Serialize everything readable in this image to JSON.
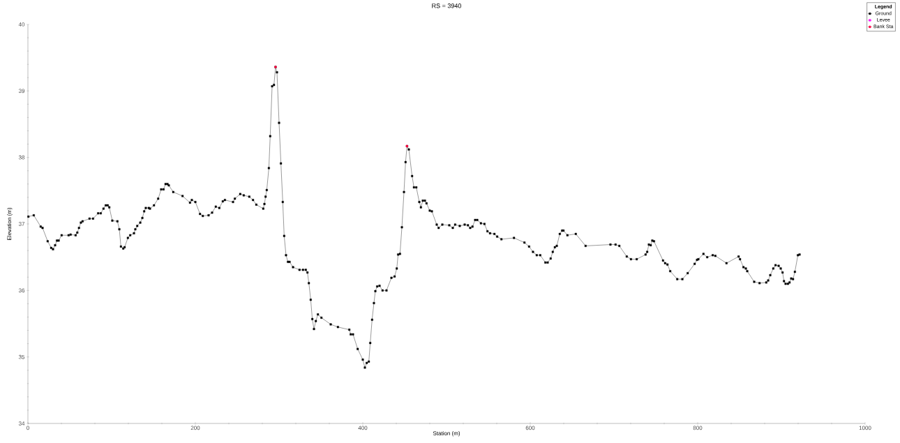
{
  "chart_data": {
    "type": "line",
    "title": "RS = 3940",
    "xlabel": "Station (m)",
    "ylabel": "Elevation (m)",
    "legend_title": "Legend",
    "legend": "top right",
    "grid": false,
    "xlim": [
      0,
      1000
    ],
    "ylim": [
      34,
      40
    ],
    "xticks": [
      0,
      {
        "value": 40,
        "label": null
      },
      {
        "value": 80,
        "label": null
      },
      {
        "value": 120,
        "label": null
      },
      {
        "value": 160,
        "label": null
      },
      200,
      {
        "value": 240,
        "label": null
      },
      {
        "value": 280,
        "label": null
      },
      {
        "value": 320,
        "label": null
      },
      {
        "value": 360,
        "label": null
      },
      400,
      {
        "value": 440,
        "label": null
      },
      {
        "value": 480,
        "label": null
      },
      {
        "value": 520,
        "label": null
      },
      {
        "value": 560,
        "label": null
      },
      600,
      {
        "value": 640,
        "label": null
      },
      {
        "value": 680,
        "label": null
      },
      {
        "value": 720,
        "label": null
      },
      {
        "value": 760,
        "label": null
      },
      800,
      {
        "value": 840,
        "label": null
      },
      {
        "value": 880,
        "label": null
      },
      {
        "value": 920,
        "label": null
      },
      {
        "value": 960,
        "label": null
      },
      1000
    ],
    "yticks": [
      34,
      {
        "value": 34.2,
        "label": null
      },
      {
        "value": 34.4,
        "label": null
      },
      {
        "value": 34.6,
        "label": null
      },
      {
        "value": 34.8,
        "label": null
      },
      35,
      {
        "value": 35.2,
        "label": null
      },
      {
        "value": 35.4,
        "label": null
      },
      {
        "value": 35.6,
        "label": null
      },
      {
        "value": 35.8,
        "label": null
      },
      36,
      {
        "value": 36.2,
        "label": null
      },
      {
        "value": 36.4,
        "label": null
      },
      {
        "value": 36.6,
        "label": null
      },
      {
        "value": 36.8,
        "label": null
      },
      37,
      {
        "value": 37.2,
        "label": null
      },
      {
        "value": 37.4,
        "label": null
      },
      {
        "value": 37.6,
        "label": null
      },
      {
        "value": 37.8,
        "label": null
      },
      38,
      {
        "value": 38.2,
        "label": null
      },
      {
        "value": 38.4,
        "label": null
      },
      {
        "value": 38.6,
        "label": null
      },
      {
        "value": 38.8,
        "label": null
      },
      39,
      {
        "value": 39.2,
        "label": null
      },
      {
        "value": 39.4,
        "label": null
      },
      {
        "value": 39.6,
        "label": null
      },
      {
        "value": 39.8,
        "label": null
      },
      40
    ],
    "series": [
      {
        "name": "Ground",
        "color": "#000000",
        "marker": "square",
        "line_style": "solid",
        "x": [
          0.6,
          7,
          15.3,
          17.5,
          23.6,
          27.8,
          30,
          32.5,
          34.7,
          36.7,
          40.3,
          48.6,
          51,
          57,
          59,
          61,
          63.3,
          65.3,
          73.6,
          77.8,
          83.9,
          87,
          90.3,
          93,
          95.3,
          97.2,
          100.8,
          106.9,
          109.2,
          111.1,
          113.9,
          115.5,
          119.4,
          122.2,
          126.7,
          128.3,
          130.6,
          134.2,
          136.7,
          138.9,
          140.8,
          144.4,
          145.8,
          150.6,
          155.6,
          159.2,
          162,
          164.4,
          166.7,
          168.3,
          173.6,
          184.7,
          193.6,
          195.8,
          200,
          205.6,
          208.9,
          215.8,
          220,
          224.4,
          228.6,
          232.8,
          235.3,
          245,
          247.2,
          253.6,
          257.8,
          264.4,
          268.9,
          272.8,
          281.1,
          282.5,
          283.9,
          285.3,
          287.8,
          289.4,
          291.7,
          293.9,
          295.8,
          297.5,
          300,
          302.2,
          304.4,
          306.1,
          308.3,
          310.6,
          312.5,
          316.7,
          324.4,
          328.6,
          331.9,
          333.9,
          335.6,
          337.8,
          339.7,
          341.7,
          343.9,
          346.4,
          350.6,
          361.7,
          370.3,
          383.9,
          385.6,
          388.3,
          393.9,
          400,
          402.5,
          404.7,
          407.2,
          408.9,
          411.1,
          413.3,
          415,
          417.2,
          420,
          423.6,
          428.3,
          434.2,
          438,
          440.6,
          442.2,
          444.4,
          446.7,
          449.2,
          451.1,
          452.8,
          455,
          458.9,
          461.1,
          463.9,
          467.5,
          469.4,
          471.7,
          474.2,
          476.1,
          480,
          482.5,
          488.3,
          490.6,
          495,
          503.3,
          507.5,
          510.3,
          515.8,
          521.7,
          525.6,
          528.3,
          531,
          534.2,
          536.7,
          541.1,
          545.3,
          548.9,
          552,
          557.2,
          560.5,
          565.6,
          580.6,
          593.1,
          598.6,
          603.3,
          607.8,
          611.9,
          618.1,
          620.8,
          624.4,
          626.9,
          629.4,
          631.7,
          635.3,
          638.1,
          639.7,
          644.4,
          654.4,
          666.1,
          695.8,
          701.9,
          706.4,
          715.3,
          720.3,
          727.2,
          737.8,
          739.7,
          741.7,
          743.9,
          745.8,
          747.8,
          758.6,
          761.1,
          763.9,
          767.2,
          775.6,
          781.7,
          788.1,
          796.4,
          799.2,
          800.8,
          806.9,
          811.4,
          818,
          821.1,
          834.4,
          848.9,
          850.6,
          854.7,
          857.5,
          859.2,
          867.5,
          873.9,
          881.9,
          884.2,
          886.7,
          890.3,
          893,
          896.7,
          899.2,
          901.4,
          903.1,
          905,
          907.8,
          909.7,
          911.7,
          913.9,
          916.1,
          919.7,
          921.7
        ],
        "values": [
          37.11,
          37.13,
          36.96,
          36.94,
          36.74,
          36.64,
          36.62,
          36.68,
          36.75,
          36.75,
          36.83,
          36.83,
          36.84,
          36.83,
          36.87,
          36.94,
          37.02,
          37.04,
          37.08,
          37.08,
          37.16,
          37.16,
          37.23,
          37.28,
          37.28,
          37.25,
          37.05,
          37.04,
          36.92,
          36.66,
          36.63,
          36.65,
          36.79,
          36.83,
          36.86,
          36.92,
          36.97,
          37.02,
          37.09,
          37.19,
          37.24,
          37.24,
          37.23,
          37.28,
          37.38,
          37.52,
          37.52,
          37.6,
          37.6,
          37.58,
          37.48,
          37.42,
          37.32,
          37.36,
          37.33,
          37.15,
          37.12,
          37.13,
          37.17,
          37.26,
          37.24,
          37.34,
          37.36,
          37.33,
          37.38,
          37.45,
          37.43,
          37.41,
          37.36,
          37.29,
          37.23,
          37.3,
          37.41,
          37.51,
          37.84,
          38.32,
          39.07,
          39.09,
          39.36,
          39.28,
          38.52,
          37.91,
          37.33,
          36.82,
          36.53,
          36.43,
          36.43,
          36.35,
          36.31,
          36.31,
          36.31,
          36.27,
          36.11,
          35.86,
          35.57,
          35.42,
          35.54,
          35.64,
          35.59,
          35.49,
          35.45,
          35.41,
          35.34,
          35.34,
          35.12,
          34.96,
          34.84,
          34.91,
          34.93,
          35.21,
          35.56,
          35.81,
          35.99,
          36.06,
          36.07,
          36,
          36,
          36.19,
          36.21,
          36.33,
          36.54,
          36.55,
          36.95,
          37.48,
          37.93,
          38.17,
          38.12,
          37.72,
          37.55,
          37.55,
          37.33,
          37.25,
          37.35,
          37.35,
          37.31,
          37.2,
          37.19,
          36.99,
          36.94,
          36.99,
          36.98,
          36.94,
          36.99,
          36.97,
          36.99,
          36.98,
          36.94,
          36.96,
          37.06,
          37.06,
          37.01,
          37,
          36.89,
          36.86,
          36.85,
          36.81,
          36.77,
          36.79,
          36.72,
          36.66,
          36.58,
          36.53,
          36.53,
          36.42,
          36.42,
          36.48,
          36.58,
          36.65,
          36.67,
          36.85,
          36.9,
          36.9,
          36.83,
          36.85,
          36.67,
          36.69,
          36.69,
          36.67,
          36.51,
          36.47,
          36.47,
          36.54,
          36.58,
          36.69,
          36.68,
          36.75,
          36.74,
          36.45,
          36.41,
          36.39,
          36.29,
          36.17,
          36.17,
          36.26,
          36.4,
          36.46,
          36.47,
          36.55,
          36.5,
          36.53,
          36.52,
          36.41,
          36.51,
          36.47,
          36.35,
          36.33,
          36.29,
          36.13,
          36.11,
          36.12,
          36.15,
          36.23,
          36.33,
          36.38,
          36.37,
          36.33,
          36.27,
          36.14,
          36.1,
          36.1,
          36.12,
          36.18,
          36.17,
          36.28,
          36.53,
          36.54
        ]
      },
      {
        "name": "Levee",
        "type": "line",
        "color": "#ff00ff",
        "marker": "square",
        "line_style": "solid"
      },
      {
        "name": "Bank Sta",
        "type": "scatter",
        "color": "#ff0040",
        "marker": "circle",
        "x": [
          295.8,
          452.8
        ],
        "values": [
          39.36,
          38.17
        ]
      }
    ]
  }
}
